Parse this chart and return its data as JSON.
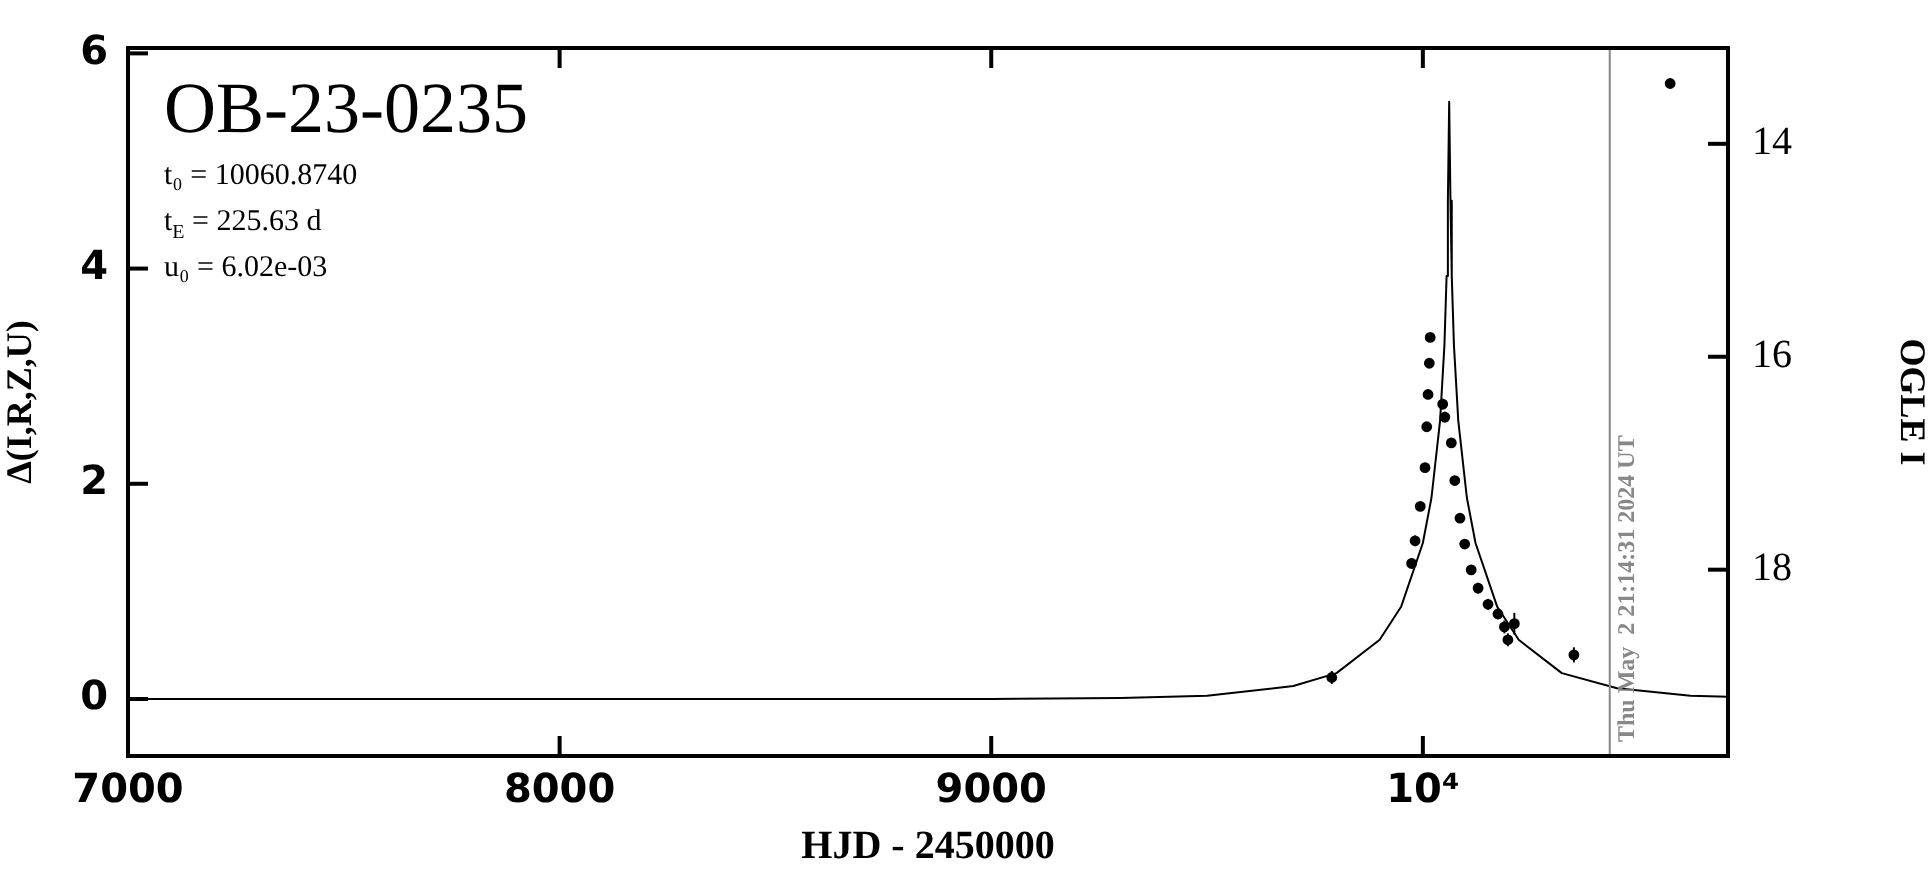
{
  "chart_data": {
    "type": "scatter",
    "title": "OB-23-0235",
    "xlabel": "HJD - 2450000",
    "ylabel": "Δ(I,R,Z,U)",
    "y2label": "OGLE I",
    "annotations": [
      "t₀ = 10060.8740",
      "t$_{E}$ = 225.63 d",
      "u₀ = 6.02e-03",
      {
        "text": "Thu May  2 21:14:31 2024 UT",
        "x": 10433,
        "y": -0.4
      }
    ],
    "xlim": [
      7000,
      10707
    ],
    "xticks": [
      7000,
      8000,
      9000,
      {
        "value": 10000,
        "label": "10⁴"
      }
    ],
    "ylim": [
      -0.53,
      6.05
    ],
    "yticks": [
      0,
      2,
      4,
      6
    ],
    "y2lim": [
      19.75,
      13.1
    ],
    "y2ticks": [
      14,
      16,
      18
    ],
    "grid": false,
    "legend": false,
    "marker": "circle",
    "ref_lines": [
      {
        "axis": "x",
        "value": 10433,
        "color": "#888888"
      }
    ],
    "series": [
      {
        "type": "line",
        "color": "#000000",
        "marker": "none",
        "line_style": "solid",
        "x": [
          7000,
          9000,
          9300,
          9500,
          9700,
          9800,
          9900,
          9950,
          10000,
          10020,
          10040,
          10050,
          10055,
          10058,
          10061,
          10064,
          10067,
          10072,
          10082,
          10102,
          10122,
          10172,
          10222,
          10322,
          10450,
          10620,
          10707
        ],
        "values": [
          0,
          0,
          0.01,
          0.03,
          0.12,
          0.24,
          0.55,
          0.86,
          1.45,
          1.87,
          2.59,
          3.29,
          3.93,
          4.63,
          5.55,
          4.63,
          3.93,
          3.29,
          2.59,
          1.87,
          1.45,
          0.86,
          0.55,
          0.24,
          0.1,
          0.03,
          0.02
        ]
      },
      {
        "color": "#000000",
        "x": [
          9789,
          9974,
          9982,
          9994,
          10005,
          10009,
          10012,
          10015,
          10017,
          10046,
          10051,
          10066,
          10074,
          10086,
          10097,
          10112,
          10128,
          10151,
          10174,
          10189,
          10197,
          10212,
          10350,
          10573
        ],
        "values": [
          0.2,
          1.26,
          1.47,
          1.79,
          2.15,
          2.53,
          2.83,
          3.12,
          3.36,
          2.74,
          2.62,
          2.38,
          2.03,
          1.68,
          1.44,
          1.2,
          1.03,
          0.88,
          0.79,
          0.67,
          0.55,
          0.7,
          0.41,
          5.72
        ],
        "errors": [
          0.06,
          0.05,
          0.05,
          0.04,
          0.04,
          0.04,
          0.04,
          0.04,
          0.04,
          0.05,
          0.05,
          0.04,
          0.04,
          0.04,
          0.04,
          0.04,
          0.05,
          0.05,
          0.05,
          0.06,
          0.06,
          0.1,
          0.07,
          null
        ]
      }
    ]
  }
}
